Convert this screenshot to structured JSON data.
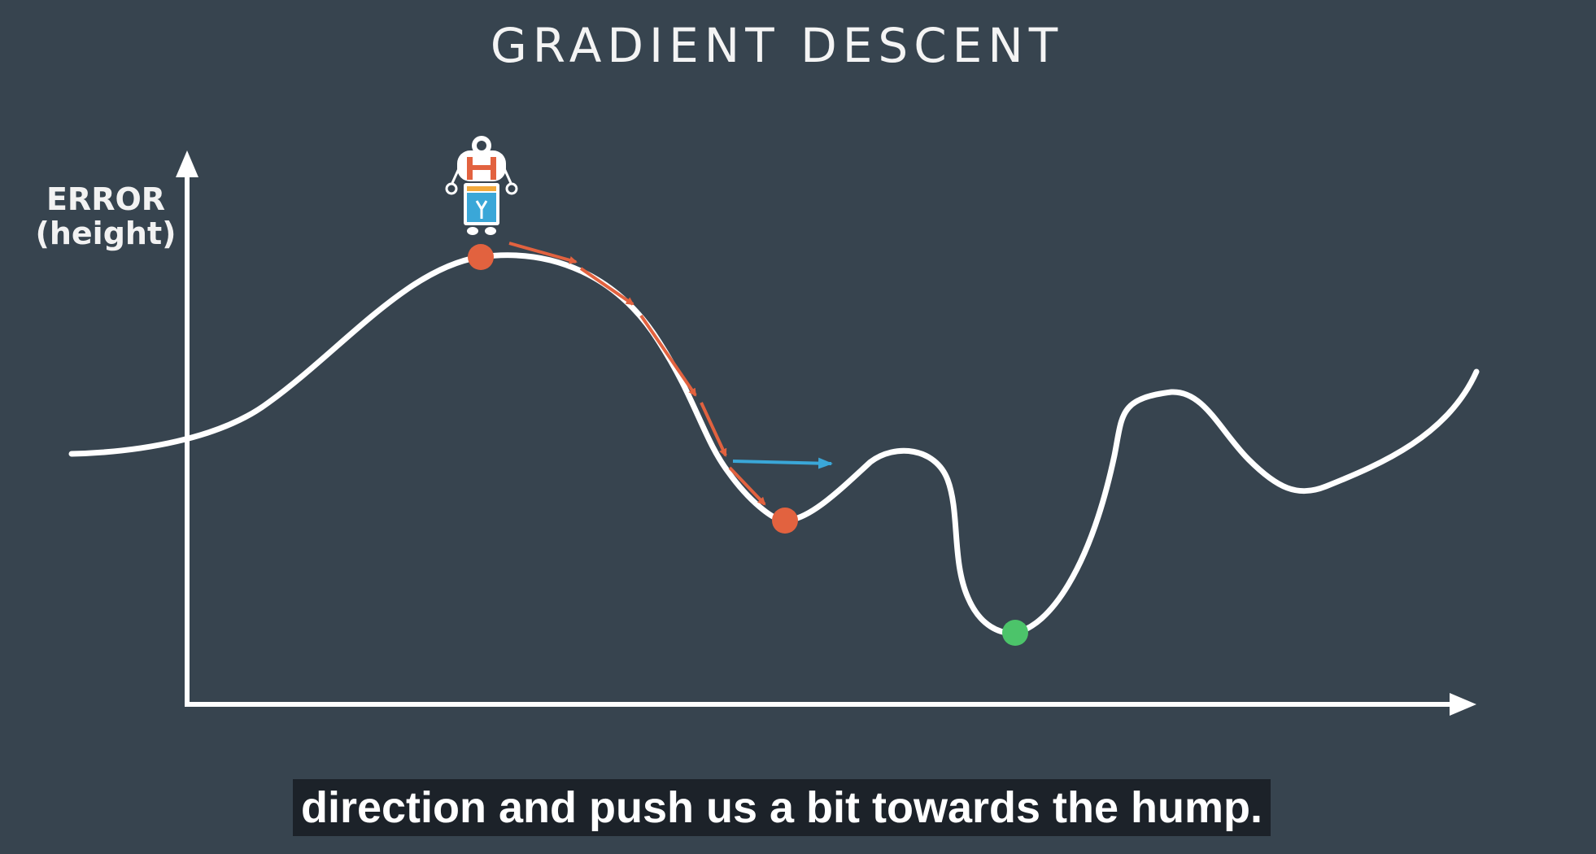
{
  "title": "GRADIENT DESCENT",
  "y_axis_label": {
    "line1": "ERROR",
    "line2": "(height)"
  },
  "caption": "direction and push us a bit towards the hump.",
  "colors": {
    "background": "#37444f",
    "curve": "#ffffff",
    "step_arrow": "#e2623f",
    "push_arrow": "#3aa7d8",
    "current_point": "#e2623f",
    "global_minimum": "#4cc46a",
    "caption_background": "#1c2229"
  },
  "icons": {
    "robot": "robot-icon"
  }
}
